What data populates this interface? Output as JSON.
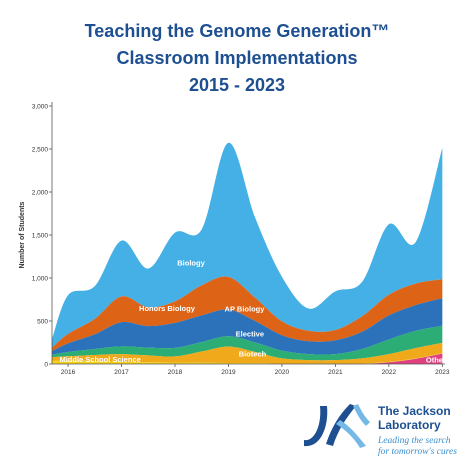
{
  "title_lines": [
    "Teaching the Genome Generation™",
    "Classroom Implementations",
    "2015 - 2023"
  ],
  "chart_data": {
    "type": "area",
    "stacked": true,
    "x": [
      2015.7,
      2016.0,
      2016.5,
      2017.0,
      2017.5,
      2018.0,
      2018.5,
      2019.0,
      2019.5,
      2020.0,
      2020.5,
      2021.0,
      2021.5,
      2022.0,
      2022.5,
      2023.0
    ],
    "xlim": [
      2015.7,
      2023.05
    ],
    "xticks": [
      2016,
      2017,
      2018,
      2019,
      2020,
      2021,
      2022,
      2023
    ],
    "xtick_labels": [
      "2016",
      "2017",
      "2018",
      "2019",
      "2020",
      "2021",
      "2022",
      "2023"
    ],
    "ylabel": "Number of Students",
    "ylim": [
      0,
      3000
    ],
    "yticks": [
      0,
      500,
      1000,
      1500,
      2000,
      2500,
      3000
    ],
    "ytick_labels": [
      "0",
      "500",
      "1,000",
      "1,500",
      "2,000",
      "2,500",
      "3,000"
    ],
    "series": [
      {
        "name": "Other",
        "color": "#e0407f",
        "values": [
          0,
          0,
          0,
          0,
          0,
          0,
          0,
          0,
          0,
          0,
          0,
          0,
          0,
          20,
          60,
          120
        ]
      },
      {
        "name": "Middle School Science",
        "color": "#f2d21b",
        "values": [
          40,
          40,
          35,
          25,
          20,
          18,
          15,
          12,
          10,
          5,
          5,
          5,
          5,
          5,
          5,
          5
        ]
      },
      {
        "name": "Biotech",
        "color": "#f0a91a",
        "values": [
          40,
          50,
          70,
          90,
          80,
          70,
          130,
          190,
          130,
          60,
          40,
          40,
          60,
          90,
          120,
          120
        ]
      },
      {
        "name": "Elective",
        "color": "#2bad75",
        "values": [
          30,
          50,
          70,
          90,
          90,
          100,
          110,
          120,
          110,
          90,
          70,
          70,
          110,
          170,
          200,
          200
        ]
      },
      {
        "name": "AP Biology",
        "color": "#2b72ba",
        "values": [
          40,
          100,
          170,
          280,
          250,
          290,
          310,
          310,
          250,
          180,
          150,
          160,
          200,
          280,
          300,
          320
        ]
      },
      {
        "name": "Honors Biology",
        "color": "#dd6316",
        "values": [
          40,
          110,
          180,
          300,
          220,
          250,
          350,
          380,
          270,
          160,
          120,
          120,
          180,
          240,
          250,
          220
        ]
      },
      {
        "name": "Biology",
        "color": "#45b0e5",
        "values": [
          100,
          450,
          380,
          650,
          450,
          800,
          650,
          1560,
          930,
          520,
          260,
          450,
          400,
          820,
          480,
          1530
        ]
      }
    ],
    "annotations": [
      {
        "text": "Biology",
        "x": 2018.3,
        "y": 1175,
        "color": "#ffffff"
      },
      {
        "text": "Honors Biology",
        "x": 2017.85,
        "y": 645,
        "color": "#ffffff"
      },
      {
        "text": "AP Biology",
        "x": 2019.3,
        "y": 640,
        "color": "#ffffff"
      },
      {
        "text": "Elective",
        "x": 2019.4,
        "y": 350,
        "color": "#ffffff"
      },
      {
        "text": "Biotech",
        "x": 2019.45,
        "y": 115,
        "color": "#ffffff"
      },
      {
        "text": "Middle School Science",
        "x": 2016.6,
        "y": 50,
        "color": "#ffffff"
      },
      {
        "text": "Other",
        "x": 2022.88,
        "y": 45,
        "color": "#ffffff"
      }
    ]
  },
  "logo": {
    "name_line1": "The Jackson",
    "name_line2": "Laboratory",
    "tagline_line1": "Leading the search",
    "tagline_line2": "for tomorrow's cures",
    "colors": {
      "primary": "#1d4f91",
      "accent": "#3b8fd0",
      "mark_light": "#74b9e6"
    }
  }
}
